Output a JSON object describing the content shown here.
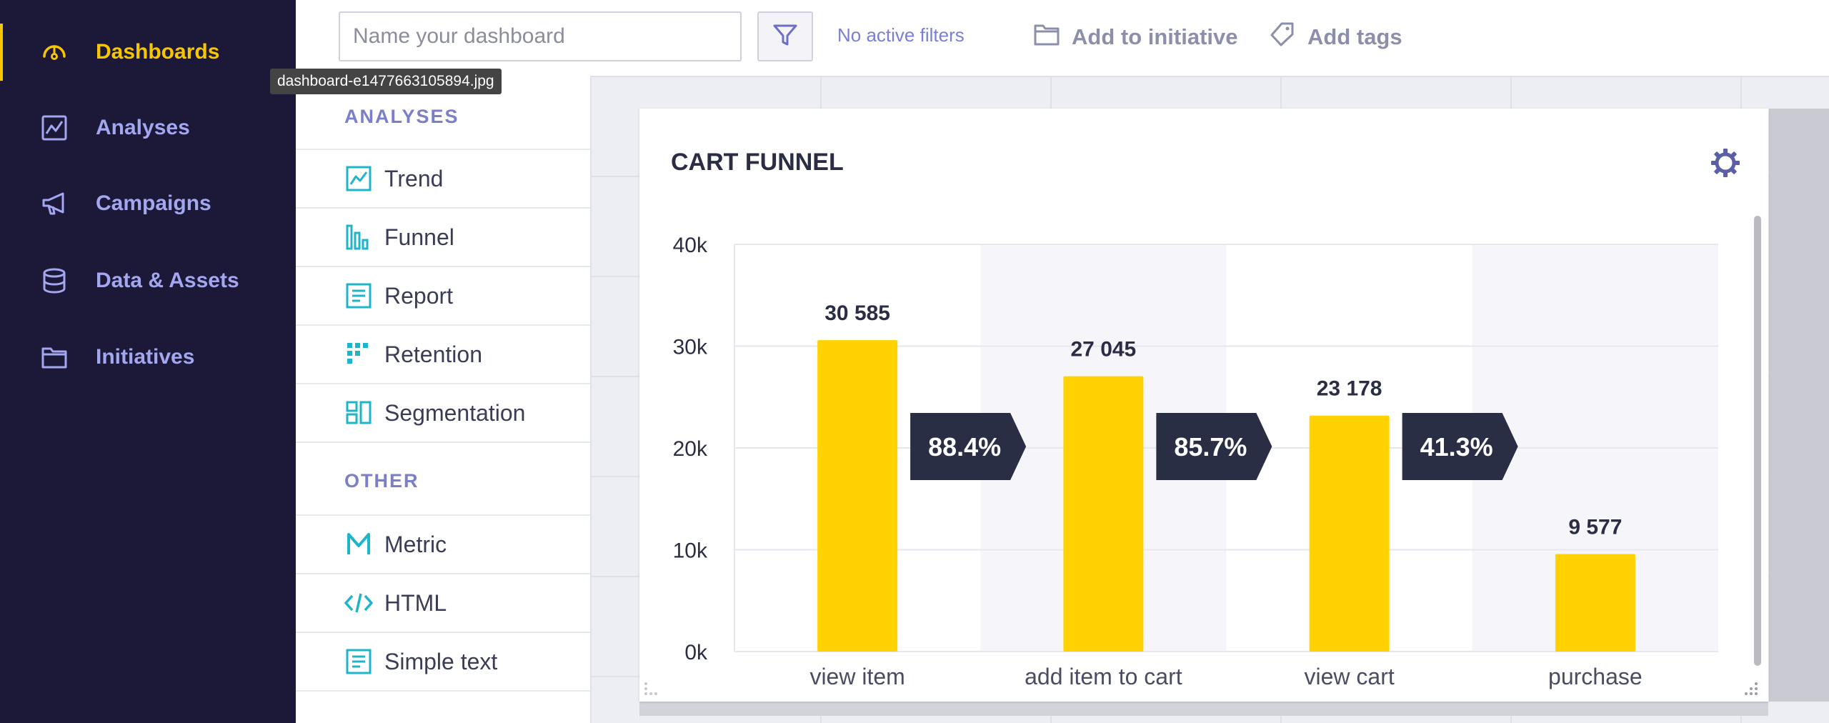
{
  "sidebar": {
    "items": [
      {
        "label": "Dashboards",
        "icon": "dashboard-gauge-icon",
        "active": true
      },
      {
        "label": "Analyses",
        "icon": "analyses-chart-icon",
        "active": false
      },
      {
        "label": "Campaigns",
        "icon": "megaphone-icon",
        "active": false
      },
      {
        "label": "Data & Assets",
        "icon": "database-icon",
        "active": false
      },
      {
        "label": "Initiatives",
        "icon": "folder-icon",
        "active": false
      }
    ]
  },
  "tooltip": {
    "text": "dashboard-e1477663105894.jpg"
  },
  "topbar": {
    "name_placeholder": "Name your dashboard",
    "filters_text": "No active filters",
    "add_to_initiative": "Add to initiative",
    "add_tags": "Add tags"
  },
  "panel": {
    "analyses_title": "ANALYSES",
    "analyses": [
      {
        "label": "Trend",
        "icon": "trend-icon"
      },
      {
        "label": "Funnel",
        "icon": "funnel-icon"
      },
      {
        "label": "Report",
        "icon": "report-icon"
      },
      {
        "label": "Retention",
        "icon": "retention-icon"
      },
      {
        "label": "Segmentation",
        "icon": "segmentation-icon"
      }
    ],
    "other_title": "OTHER",
    "other": [
      {
        "label": "Metric",
        "icon": "metric-icon"
      },
      {
        "label": "HTML",
        "icon": "html-code-icon"
      },
      {
        "label": "Simple text",
        "icon": "simple-text-icon"
      }
    ]
  },
  "card": {
    "title": "CART FUNNEL"
  },
  "colors": {
    "sidebar_bg": "#1c1837",
    "accent": "#f7c600",
    "nav_text": "#a3a7f0",
    "bar": "#ffd200",
    "conversion_badge": "#2a2e44",
    "teal_icon": "#1fb5c9"
  },
  "chart_data": {
    "type": "bar",
    "categories": [
      "view item",
      "add item to cart",
      "view cart",
      "purchase"
    ],
    "values": [
      30585,
      27045,
      23178,
      9577
    ],
    "value_labels": [
      "30 585",
      "27 045",
      "23 178",
      "9 577"
    ],
    "conversions": [
      "88.4%",
      "85.7%",
      "41.3%"
    ],
    "y_ticks": [
      "40k",
      "30k",
      "20k",
      "10k",
      "0k"
    ],
    "y_tick_values": [
      40000,
      30000,
      20000,
      10000,
      0
    ],
    "ylim": [
      0,
      40000
    ],
    "grid": true
  }
}
